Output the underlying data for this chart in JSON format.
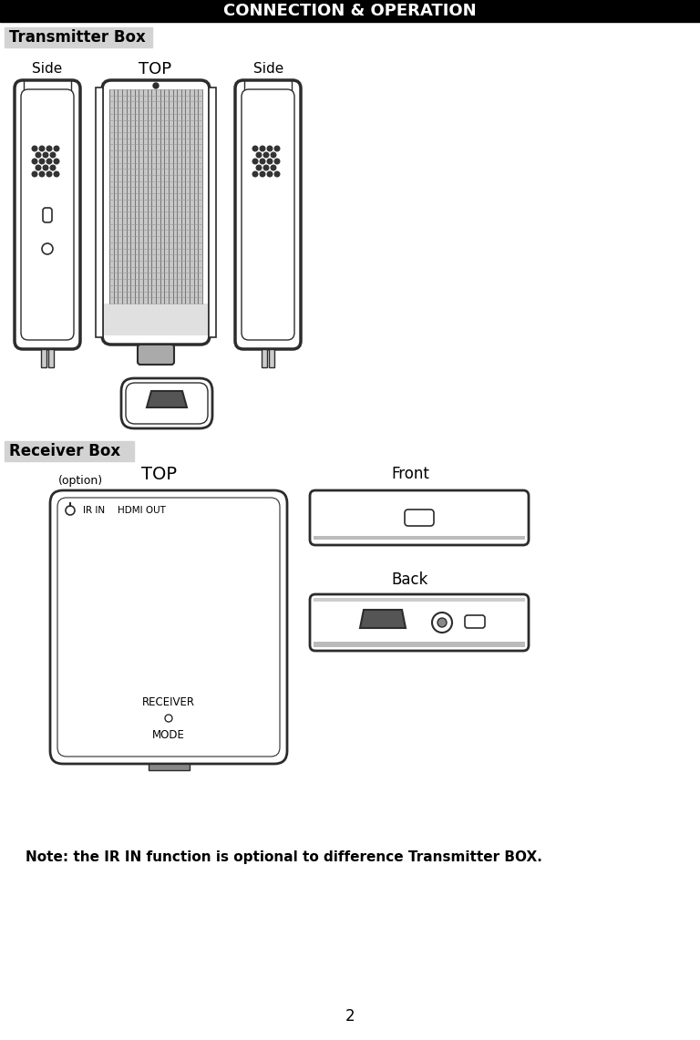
{
  "page_title": "CONNECTION & OPERATION",
  "section1_title": "Transmitter Box",
  "section2_title": "Receiver Box",
  "label_side1": "Side",
  "label_top1": "TOP",
  "label_side2": "Side",
  "label_top2": "TOP",
  "label_option": "(option)",
  "label_front": "Front",
  "label_back": "Back",
  "note_text": "Note: the IR IN function is optional to difference Transmitter BOX.",
  "page_number": "2",
  "bg_color": "#ffffff",
  "title_bg": "#000000",
  "title_fg": "#ffffff",
  "section_bg": "#d3d3d3",
  "line_color": "#2c2c2c",
  "grid_color": "#555555"
}
